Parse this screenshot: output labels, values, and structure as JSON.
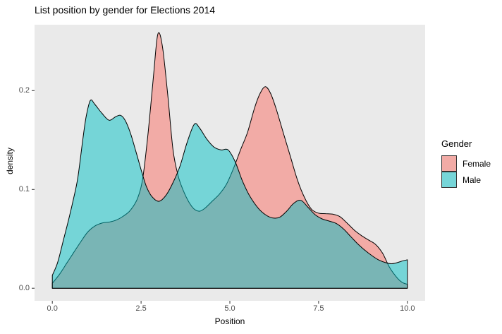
{
  "title": "List position by gender for Elections 2014",
  "colors": {
    "female_base": "#F8766D",
    "male_base": "#00BFC4",
    "female_alpha": 0.55,
    "male_alpha": 0.5,
    "curve_stroke": "#000000",
    "panel_bg": "#EAEAEA",
    "page_bg": "#FFFFFF",
    "tick_mark": "#333333",
    "tick_label": "#4D4D4D"
  },
  "axes": {
    "x": {
      "title": "Position",
      "range": [
        -0.5,
        10.5
      ],
      "ticks": [
        {
          "value": 0,
          "label": "0.0"
        },
        {
          "value": 2.5,
          "label": "2.5"
        },
        {
          "value": 5,
          "label": "5.0"
        },
        {
          "value": 7.5,
          "label": "7.5"
        },
        {
          "value": 10,
          "label": "10.0"
        }
      ]
    },
    "y": {
      "title": "density",
      "range": [
        -0.0127,
        0.2667
      ],
      "ticks": [
        {
          "value": 0,
          "label": "0.0"
        },
        {
          "value": 0.1,
          "label": "0.1"
        },
        {
          "value": 0.2,
          "label": "0.2"
        }
      ]
    }
  },
  "legend": {
    "title": "Gender",
    "entries": [
      {
        "label": "Female"
      },
      {
        "label": "Male"
      }
    ]
  },
  "chart_data": {
    "type": "area",
    "subtype": "overlaid-density",
    "title": "List position by gender for Elections 2014",
    "xlabel": "Position",
    "ylabel": "density",
    "xlim": [
      -0.5,
      10.5
    ],
    "ylim": [
      -0.0127,
      0.2667
    ],
    "grid": false,
    "legend_position": "right",
    "series": [
      {
        "name": "Female",
        "x": [
          0,
          0.2,
          0.4,
          0.6,
          0.8,
          1.0,
          1.2,
          1.4,
          1.6,
          1.8,
          2.0,
          2.2,
          2.4,
          2.55,
          2.7,
          2.85,
          2.97,
          3.1,
          3.25,
          3.4,
          3.55,
          3.7,
          3.85,
          4.0,
          4.15,
          4.3,
          4.5,
          4.7,
          4.9,
          5.1,
          5.3,
          5.5,
          5.7,
          5.85,
          6.0,
          6.15,
          6.3,
          6.5,
          6.7,
          6.9,
          7.1,
          7.3,
          7.5,
          7.7,
          7.9,
          8.1,
          8.3,
          8.5,
          8.7,
          8.9,
          9.1,
          9.3,
          9.5,
          9.7,
          9.85,
          10
        ],
        "density": [
          0.005,
          0.014,
          0.025,
          0.036,
          0.047,
          0.057,
          0.063,
          0.066,
          0.067,
          0.069,
          0.073,
          0.079,
          0.091,
          0.112,
          0.158,
          0.215,
          0.257,
          0.245,
          0.196,
          0.14,
          0.113,
          0.098,
          0.087,
          0.08,
          0.078,
          0.081,
          0.088,
          0.095,
          0.105,
          0.121,
          0.14,
          0.158,
          0.183,
          0.197,
          0.204,
          0.197,
          0.182,
          0.158,
          0.134,
          0.11,
          0.092,
          0.08,
          0.076,
          0.0755,
          0.075,
          0.0725,
          0.066,
          0.059,
          0.0535,
          0.049,
          0.0445,
          0.0355,
          0.021,
          0.011,
          0.006,
          0.004
        ]
      },
      {
        "name": "Male",
        "x": [
          0,
          0.15,
          0.3,
          0.45,
          0.6,
          0.72,
          0.85,
          0.95,
          1.07,
          1.2,
          1.4,
          1.6,
          1.78,
          1.92,
          2.05,
          2.2,
          2.35,
          2.5,
          2.65,
          2.8,
          3.0,
          3.2,
          3.4,
          3.6,
          3.8,
          4.0,
          4.15,
          4.35,
          4.55,
          4.75,
          4.95,
          5.15,
          5.35,
          5.55,
          5.8,
          6.0,
          6.2,
          6.4,
          6.6,
          6.8,
          7.0,
          7.2,
          7.4,
          7.6,
          7.8,
          8.0,
          8.2,
          8.4,
          8.6,
          8.8,
          9.0,
          9.2,
          9.4,
          9.55,
          9.7,
          9.85,
          10
        ],
        "density": [
          0.013,
          0.026,
          0.047,
          0.068,
          0.091,
          0.112,
          0.148,
          0.173,
          0.19,
          0.186,
          0.177,
          0.17,
          0.1735,
          0.175,
          0.17,
          0.157,
          0.139,
          0.12,
          0.103,
          0.093,
          0.088,
          0.094,
          0.107,
          0.124,
          0.148,
          0.166,
          0.162,
          0.151,
          0.143,
          0.14,
          0.14,
          0.128,
          0.109,
          0.094,
          0.081,
          0.0745,
          0.0712,
          0.0718,
          0.078,
          0.086,
          0.089,
          0.082,
          0.0745,
          0.0702,
          0.068,
          0.0655,
          0.06,
          0.0525,
          0.045,
          0.0385,
          0.033,
          0.0285,
          0.0258,
          0.0248,
          0.0258,
          0.0275,
          0.0288
        ]
      }
    ]
  }
}
